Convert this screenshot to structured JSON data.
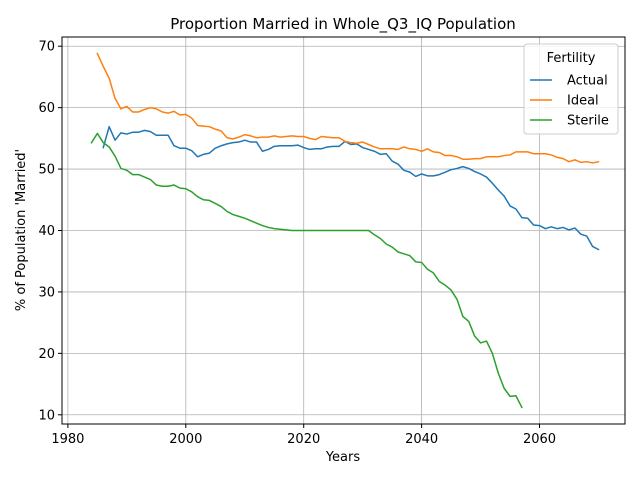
{
  "chart_data": {
    "type": "line",
    "title": "Proportion Married in Whole_Q3_IQ Population",
    "xlabel": "Years",
    "ylabel": "% of Population 'Married'",
    "xlim": [
      1979,
      2074.5
    ],
    "ylim": [
      8.5,
      71.5
    ],
    "xticks": [
      1980,
      2000,
      2020,
      2040,
      2060
    ],
    "yticks": [
      10,
      20,
      30,
      40,
      50,
      60,
      70
    ],
    "grid": true,
    "legend": {
      "title": "Fertility",
      "placement": "top-right"
    },
    "series": [
      {
        "name": "Actual",
        "color": "#1f77b4",
        "points": [
          [
            1986,
            53.5
          ],
          [
            1987,
            56.9
          ],
          [
            1988,
            54.7
          ],
          [
            1989,
            55.9
          ],
          [
            1990,
            55.7
          ],
          [
            1991,
            56.0
          ],
          [
            1992,
            56.0
          ],
          [
            1993,
            56.3
          ],
          [
            1994,
            56.1
          ],
          [
            1995,
            55.5
          ],
          [
            1996,
            55.5
          ],
          [
            1997,
            55.5
          ],
          [
            1998,
            53.8
          ],
          [
            1999,
            53.4
          ],
          [
            2000,
            53.4
          ],
          [
            2001,
            53.0
          ],
          [
            2002,
            52.0
          ],
          [
            2003,
            52.4
          ],
          [
            2004,
            52.6
          ],
          [
            2005,
            53.4
          ],
          [
            2006,
            53.8
          ],
          [
            2007,
            54.1
          ],
          [
            2008,
            54.3
          ],
          [
            2009,
            54.4
          ],
          [
            2010,
            54.7
          ],
          [
            2011,
            54.4
          ],
          [
            2012,
            54.4
          ],
          [
            2013,
            52.9
          ],
          [
            2014,
            53.2
          ],
          [
            2015,
            53.7
          ],
          [
            2016,
            53.8
          ],
          [
            2017,
            53.8
          ],
          [
            2018,
            53.8
          ],
          [
            2019,
            53.9
          ],
          [
            2020,
            53.5
          ],
          [
            2021,
            53.2
          ],
          [
            2022,
            53.3
          ],
          [
            2023,
            53.3
          ],
          [
            2024,
            53.6
          ],
          [
            2025,
            53.7
          ],
          [
            2026,
            53.7
          ],
          [
            2027,
            54.5
          ],
          [
            2028,
            54.0
          ],
          [
            2029,
            54.1
          ],
          [
            2030,
            53.5
          ],
          [
            2031,
            53.2
          ],
          [
            2032,
            52.9
          ],
          [
            2033,
            52.4
          ],
          [
            2034,
            52.5
          ],
          [
            2035,
            51.3
          ],
          [
            2036,
            50.8
          ],
          [
            2037,
            49.8
          ],
          [
            2038,
            49.5
          ],
          [
            2039,
            48.8
          ],
          [
            2040,
            49.2
          ],
          [
            2041,
            48.9
          ],
          [
            2042,
            48.9
          ],
          [
            2043,
            49.1
          ],
          [
            2044,
            49.5
          ],
          [
            2045,
            49.9
          ],
          [
            2046,
            50.1
          ],
          [
            2047,
            50.4
          ],
          [
            2048,
            50.1
          ],
          [
            2049,
            49.6
          ],
          [
            2050,
            49.2
          ],
          [
            2051,
            48.7
          ],
          [
            2052,
            47.7
          ],
          [
            2053,
            46.6
          ],
          [
            2054,
            45.6
          ],
          [
            2055,
            44.0
          ],
          [
            2056,
            43.5
          ],
          [
            2057,
            42.1
          ],
          [
            2058,
            42.0
          ],
          [
            2059,
            40.9
          ],
          [
            2060,
            40.8
          ],
          [
            2061,
            40.3
          ],
          [
            2062,
            40.6
          ],
          [
            2063,
            40.3
          ],
          [
            2064,
            40.5
          ],
          [
            2065,
            40.1
          ],
          [
            2066,
            40.4
          ],
          [
            2067,
            39.4
          ],
          [
            2068,
            39.1
          ],
          [
            2069,
            37.4
          ],
          [
            2070,
            36.9
          ]
        ]
      },
      {
        "name": "Ideal",
        "color": "#ff7f0e",
        "points": [
          [
            1985,
            68.8
          ],
          [
            1986,
            66.7
          ],
          [
            1987,
            64.8
          ],
          [
            1988,
            61.5
          ],
          [
            1989,
            59.8
          ],
          [
            1990,
            60.2
          ],
          [
            1991,
            59.3
          ],
          [
            1992,
            59.3
          ],
          [
            1993,
            59.7
          ],
          [
            1994,
            60.0
          ],
          [
            1995,
            59.8
          ],
          [
            1996,
            59.3
          ],
          [
            1997,
            59.1
          ],
          [
            1998,
            59.4
          ],
          [
            1999,
            58.8
          ],
          [
            2000,
            58.9
          ],
          [
            2001,
            58.3
          ],
          [
            2002,
            57.1
          ],
          [
            2003,
            57.0
          ],
          [
            2004,
            56.9
          ],
          [
            2005,
            56.5
          ],
          [
            2006,
            56.2
          ],
          [
            2007,
            55.1
          ],
          [
            2008,
            54.9
          ],
          [
            2009,
            55.2
          ],
          [
            2010,
            55.6
          ],
          [
            2011,
            55.4
          ],
          [
            2012,
            55.1
          ],
          [
            2013,
            55.2
          ],
          [
            2014,
            55.2
          ],
          [
            2015,
            55.4
          ],
          [
            2016,
            55.2
          ],
          [
            2017,
            55.3
          ],
          [
            2018,
            55.4
          ],
          [
            2019,
            55.3
          ],
          [
            2020,
            55.3
          ],
          [
            2021,
            55.0
          ],
          [
            2022,
            54.8
          ],
          [
            2023,
            55.3
          ],
          [
            2024,
            55.2
          ],
          [
            2025,
            55.1
          ],
          [
            2026,
            55.1
          ],
          [
            2027,
            54.5
          ],
          [
            2028,
            54.3
          ],
          [
            2029,
            54.2
          ],
          [
            2030,
            54.4
          ],
          [
            2031,
            54.0
          ],
          [
            2032,
            53.6
          ],
          [
            2033,
            53.3
          ],
          [
            2034,
            53.3
          ],
          [
            2035,
            53.3
          ],
          [
            2036,
            53.2
          ],
          [
            2037,
            53.6
          ],
          [
            2038,
            53.3
          ],
          [
            2039,
            53.2
          ],
          [
            2040,
            52.9
          ],
          [
            2041,
            53.3
          ],
          [
            2042,
            52.8
          ],
          [
            2043,
            52.7
          ],
          [
            2044,
            52.2
          ],
          [
            2045,
            52.2
          ],
          [
            2046,
            52.0
          ],
          [
            2047,
            51.6
          ],
          [
            2048,
            51.6
          ],
          [
            2049,
            51.7
          ],
          [
            2050,
            51.7
          ],
          [
            2051,
            52.0
          ],
          [
            2052,
            52.0
          ],
          [
            2053,
            52.0
          ],
          [
            2054,
            52.2
          ],
          [
            2055,
            52.3
          ],
          [
            2056,
            52.8
          ],
          [
            2057,
            52.8
          ],
          [
            2058,
            52.8
          ],
          [
            2059,
            52.5
          ],
          [
            2060,
            52.5
          ],
          [
            2061,
            52.5
          ],
          [
            2062,
            52.3
          ],
          [
            2063,
            51.9
          ],
          [
            2064,
            51.7
          ],
          [
            2065,
            51.2
          ],
          [
            2066,
            51.5
          ],
          [
            2067,
            51.1
          ],
          [
            2068,
            51.2
          ],
          [
            2069,
            51.0
          ],
          [
            2070,
            51.2
          ]
        ]
      },
      {
        "name": "Sterile",
        "color": "#2ca02c",
        "points": [
          [
            1984,
            54.3
          ],
          [
            1985,
            55.8
          ],
          [
            1986,
            54.3
          ],
          [
            1987,
            53.6
          ],
          [
            1988,
            52.1
          ],
          [
            1989,
            50.1
          ],
          [
            1990,
            49.8
          ],
          [
            1991,
            49.1
          ],
          [
            1992,
            49.1
          ],
          [
            1993,
            48.7
          ],
          [
            1994,
            48.3
          ],
          [
            1995,
            47.4
          ],
          [
            1996,
            47.2
          ],
          [
            1997,
            47.2
          ],
          [
            1998,
            47.4
          ],
          [
            1999,
            46.9
          ],
          [
            2000,
            46.8
          ],
          [
            2001,
            46.3
          ],
          [
            2002,
            45.5
          ],
          [
            2003,
            45.0
          ],
          [
            2004,
            44.9
          ],
          [
            2005,
            44.4
          ],
          [
            2006,
            43.9
          ],
          [
            2007,
            43.1
          ],
          [
            2008,
            42.6
          ],
          [
            2009,
            42.3
          ],
          [
            2010,
            42.0
          ],
          [
            2011,
            41.6
          ],
          [
            2012,
            41.2
          ],
          [
            2013,
            40.8
          ],
          [
            2014,
            40.5
          ],
          [
            2015,
            40.3
          ],
          [
            2016,
            40.2
          ],
          [
            2017,
            40.1
          ],
          [
            2018,
            40.0
          ],
          [
            2019,
            40.0
          ],
          [
            2020,
            40.0
          ],
          [
            2021,
            40.0
          ],
          [
            2022,
            40.0
          ],
          [
            2023,
            40.0
          ],
          [
            2024,
            40.0
          ],
          [
            2025,
            40.0
          ],
          [
            2026,
            40.0
          ],
          [
            2027,
            40.0
          ],
          [
            2028,
            40.0
          ],
          [
            2029,
            40.0
          ],
          [
            2030,
            40.0
          ],
          [
            2031,
            40.0
          ],
          [
            2032,
            39.3
          ],
          [
            2033,
            38.7
          ],
          [
            2034,
            37.8
          ],
          [
            2035,
            37.3
          ],
          [
            2036,
            36.5
          ],
          [
            2037,
            36.2
          ],
          [
            2038,
            35.9
          ],
          [
            2039,
            34.9
          ],
          [
            2040,
            34.8
          ],
          [
            2041,
            33.7
          ],
          [
            2042,
            33.1
          ],
          [
            2043,
            31.7
          ],
          [
            2044,
            31.1
          ],
          [
            2045,
            30.3
          ],
          [
            2046,
            28.8
          ],
          [
            2047,
            26.0
          ],
          [
            2048,
            25.2
          ],
          [
            2049,
            22.8
          ],
          [
            2050,
            21.7
          ],
          [
            2051,
            22.0
          ],
          [
            2052,
            20.0
          ],
          [
            2053,
            16.8
          ],
          [
            2054,
            14.3
          ],
          [
            2055,
            13.0
          ],
          [
            2056,
            13.1
          ],
          [
            2057,
            11.2
          ]
        ]
      }
    ]
  }
}
